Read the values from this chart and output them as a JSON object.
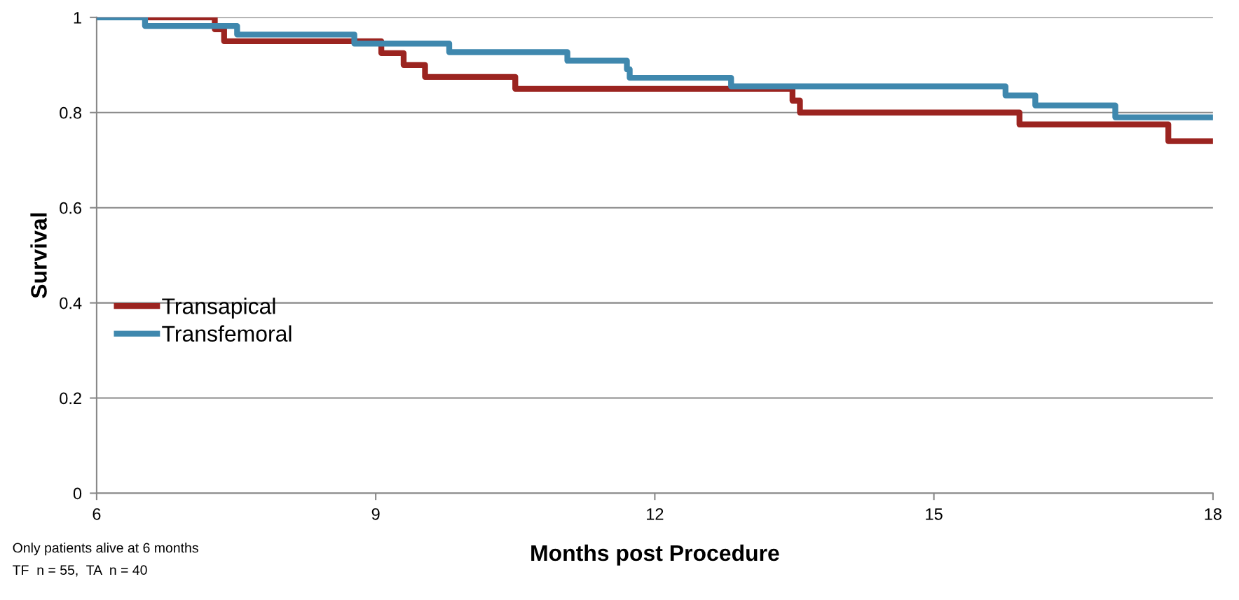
{
  "chart_data": {
    "type": "step",
    "xlabel": "Months post Procedure",
    "ylabel": "Survival",
    "xlim": [
      6,
      18
    ],
    "xticks": [
      6,
      9,
      12,
      15,
      18
    ],
    "ylim": [
      0,
      1
    ],
    "yticks": [
      0,
      0.2,
      0.4,
      0.6,
      0.8,
      1
    ],
    "grid": "y",
    "legend": "left",
    "marker": "none",
    "line_style": "solid",
    "annotations": [
      "Only patients alive at 6 months",
      "TF  n = 55,  TA  n = 40"
    ],
    "series": [
      {
        "name": "Transapical",
        "color": "#9b2420",
        "x": [
          6,
          7.27,
          7.37,
          9.06,
          9.3,
          9.53,
          10.5,
          13.48,
          13.56,
          15.92,
          17.52,
          18
        ],
        "values": [
          1,
          0.975,
          0.95,
          0.925,
          0.9,
          0.875,
          0.85,
          0.825,
          0.8,
          0.775,
          0.74,
          0.74
        ]
      },
      {
        "name": "Transfemoral",
        "color": "#3f88ae",
        "x": [
          6,
          6.52,
          7.51,
          8.77,
          9.79,
          11.06,
          11.7,
          11.73,
          12.82,
          15.77,
          16.09,
          16.95,
          18
        ],
        "values": [
          1,
          0.982,
          0.964,
          0.945,
          0.927,
          0.909,
          0.891,
          0.873,
          0.855,
          0.836,
          0.815,
          0.79,
          0.79
        ]
      }
    ]
  }
}
